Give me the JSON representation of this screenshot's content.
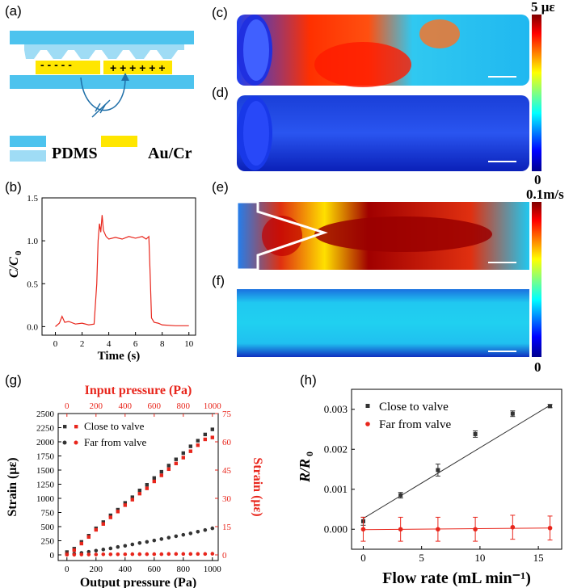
{
  "panels": {
    "a": {
      "label": "(a)",
      "legend_pdms": "PDMS",
      "legend_au": "Au/Cr",
      "minus_text": "- - - - -",
      "plus_text": "+ + + + + +"
    },
    "b": {
      "label": "(b)"
    },
    "c": {
      "label": "(c)"
    },
    "d": {
      "label": "(d)"
    },
    "e": {
      "label": "(e)"
    },
    "f": {
      "label": "(f)"
    },
    "g": {
      "label": "(g)"
    },
    "h": {
      "label": "(h)"
    }
  },
  "colorbar_strain": {
    "max": "5 με",
    "min": "0"
  },
  "colorbar_velocity": {
    "max": "0.1m/s",
    "min": "0"
  },
  "colors": {
    "jet": [
      "#00008f",
      "#0000ff",
      "#00ffff",
      "#80ff80",
      "#ffff00",
      "#ff0000",
      "#800000"
    ],
    "pdms": "#4dc3ee",
    "pdms_light": "#9fdcf5",
    "au": "#ffe600",
    "red": "#e8261c",
    "black": "#333333"
  },
  "chart_data": [
    {
      "id": "b",
      "type": "line",
      "title": "",
      "xlabel": "Time (s)",
      "ylabel": "C/C0",
      "ylabel_main": "C/C",
      "ylabel_sub": "0",
      "xlim": [
        -1,
        10.5
      ],
      "ylim": [
        -0.1,
        1.5
      ],
      "xticks": [
        0,
        2,
        4,
        6,
        8,
        10
      ],
      "yticks": [
        "0.0",
        "0.5",
        "1.0",
        "1.5"
      ],
      "series": [
        {
          "name": "C/C0",
          "color": "#e8261c",
          "x": [
            0,
            0.3,
            0.5,
            0.7,
            1.0,
            1.5,
            2.0,
            2.5,
            2.9,
            3.1,
            3.2,
            3.3,
            3.4,
            3.5,
            3.6,
            3.8,
            4.0,
            4.5,
            5.0,
            5.5,
            6.0,
            6.5,
            6.8,
            7.0,
            7.1,
            7.2,
            7.4,
            7.7,
            8,
            9,
            10
          ],
          "y": [
            0.0,
            0.04,
            0.12,
            0.05,
            0.06,
            0.03,
            0.04,
            0.02,
            0.03,
            0.5,
            1.0,
            1.2,
            1.1,
            1.3,
            1.12,
            1.05,
            1.02,
            1.04,
            1.02,
            1.05,
            1.03,
            1.05,
            1.02,
            1.05,
            0.6,
            0.1,
            0.05,
            0.04,
            0.02,
            0.01,
            0.01
          ]
        }
      ]
    },
    {
      "id": "g",
      "type": "scatter",
      "title": "Input pressure (Pa)",
      "xlabel": "Output pressure (Pa)",
      "ylabel": "Strain (με)",
      "ylabel_right": "Strain (με)",
      "xlim": [
        -60,
        1040
      ],
      "ylim": [
        -100,
        2500
      ],
      "ylim_right": [
        -3,
        75
      ],
      "xticks": [
        0,
        200,
        400,
        600,
        800,
        1000
      ],
      "yticks": [
        0,
        250,
        500,
        750,
        1000,
        1250,
        1500,
        1750,
        2000,
        2250,
        2500
      ],
      "yticks_right": [
        0,
        15,
        30,
        45,
        60,
        75
      ],
      "legend": [
        {
          "name": "Close to valve"
        },
        {
          "name": "Far from valve"
        }
      ],
      "series": [
        {
          "name": "Close to valve (output)",
          "color": "#333333",
          "axis": "left",
          "x": [
            0,
            50,
            100,
            150,
            200,
            250,
            300,
            350,
            400,
            450,
            500,
            550,
            600,
            650,
            700,
            750,
            800,
            850,
            900,
            950,
            1000
          ],
          "y": [
            50,
            110,
            230,
            340,
            470,
            580,
            700,
            800,
            920,
            1020,
            1140,
            1240,
            1360,
            1470,
            1580,
            1690,
            1800,
            1920,
            2020,
            2130,
            2220
          ]
        },
        {
          "name": "Close to valve (input)",
          "color": "#e8261c",
          "axis": "right",
          "x": [
            0,
            50,
            100,
            150,
            200,
            250,
            300,
            350,
            400,
            450,
            500,
            550,
            600,
            650,
            700,
            750,
            800,
            850,
            900,
            950,
            1000
          ],
          "y": [
            0.5,
            2.5,
            6,
            9.5,
            13.3,
            16.4,
            19.9,
            23,
            26.4,
            29.3,
            32.5,
            35.3,
            39,
            42.2,
            45.5,
            48.5,
            51.6,
            55,
            58.2,
            61.3,
            62.3
          ]
        },
        {
          "name": "Far from valve (output)",
          "color": "#333333",
          "axis": "left",
          "x": [
            0,
            50,
            100,
            150,
            200,
            250,
            300,
            350,
            400,
            450,
            500,
            550,
            600,
            650,
            700,
            750,
            800,
            850,
            900,
            950,
            1000
          ],
          "y": [
            10,
            20,
            35,
            55,
            75,
            95,
            115,
            140,
            160,
            185,
            210,
            230,
            255,
            280,
            305,
            330,
            355,
            380,
            410,
            440,
            470
          ]
        },
        {
          "name": "Far from valve (input)",
          "color": "#e8261c",
          "axis": "right",
          "x": [
            0,
            50,
            100,
            150,
            200,
            250,
            300,
            350,
            400,
            450,
            500,
            550,
            600,
            650,
            700,
            750,
            800,
            850,
            900,
            950,
            1000
          ],
          "y": [
            0.1,
            0.1,
            0.2,
            0.2,
            0.2,
            0.3,
            0.3,
            0.3,
            0.3,
            0.4,
            0.4,
            0.4,
            0.4,
            0.4,
            0.5,
            0.5,
            0.5,
            0.5,
            0.5,
            0.5,
            0.6
          ]
        }
      ]
    },
    {
      "id": "h",
      "type": "scatter",
      "title": "",
      "xlabel": "Flow rate  (mL min⁻¹)",
      "ylabel": "R/R0",
      "ylabel_main": "R/R",
      "ylabel_sub": "0",
      "xlim": [
        -1,
        17
      ],
      "ylim": [
        -0.0005,
        0.0035
      ],
      "xticks": [
        0,
        5,
        10,
        15
      ],
      "yticks": [
        "0.000",
        "0.001",
        "0.002",
        "0.003"
      ],
      "legend": [
        {
          "name": "Close to valve"
        },
        {
          "name": "Far from valve"
        }
      ],
      "series": [
        {
          "name": "Close to valve",
          "color": "#333333",
          "x": [
            0,
            3.2,
            6.4,
            9.6,
            12.8,
            16
          ],
          "y": [
            0.0002,
            0.00085,
            0.00148,
            0.00238,
            0.00289,
            0.00308
          ],
          "err": [
            0.0001,
            7e-05,
            0.00015,
            8e-05,
            7e-05,
            4e-05
          ],
          "fit": [
            [
              0,
              0.00027
            ],
            [
              16,
              0.0031
            ]
          ]
        },
        {
          "name": "Far from valve",
          "color": "#e8261c",
          "x": [
            0,
            3.2,
            6.4,
            9.6,
            12.8,
            16
          ],
          "y": [
            0.0,
            0.0,
            0.0,
            0.0,
            5e-05,
            3e-05
          ],
          "err": [
            0.0003,
            0.0003,
            0.0003,
            0.0003,
            0.0003,
            0.0003
          ],
          "fit": [
            [
              0,
              -1e-05
            ],
            [
              16,
              3e-05
            ]
          ]
        }
      ]
    }
  ]
}
